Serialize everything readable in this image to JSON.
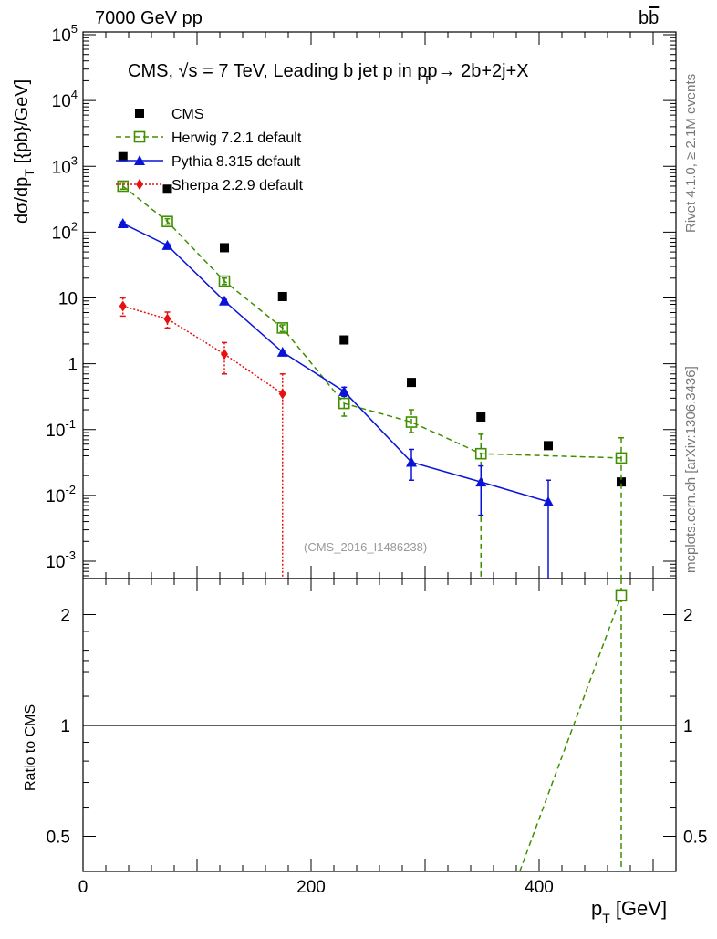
{
  "header": {
    "left": "7000 GeV pp",
    "right": "b",
    "right_bar": "b"
  },
  "side": {
    "rivet": "Rivet 4.1.0, ≥ 2.1M events",
    "mcplots": "mcplots.cern.ch [arXiv:1306.3436]"
  },
  "chart_data": {
    "type": "scatter",
    "title": "CMS, √s = 7 TeV, Leading b jet p in pp→  2b+2j+X",
    "title_sub": "T",
    "watermark": "(CMS_2016_I1486238)",
    "xlabel": "p",
    "xlabel_sub": "T",
    "xlabel_unit": "[GeV]",
    "ylabel_top": "dσ/dp",
    "ylabel_top_sub": "T",
    "ylabel_top_unit": "[{pb}/GeV]",
    "ylabel_bottom": "Ratio to CMS",
    "xlim": [
      0,
      520
    ],
    "ylim_top": [
      0.0005,
      100000
    ],
    "ylim_bottom": [
      0.35,
      2.3
    ],
    "x_ticks": [
      "0",
      "200",
      "400"
    ],
    "y_ticks_top": [
      "10^5",
      "10^4",
      "10^3",
      "10^2",
      "10",
      "1",
      "10^-1",
      "10^-2",
      "10^-3"
    ],
    "y_ticks_bottom": [
      "2",
      "1",
      "0.5"
    ],
    "series": [
      {
        "name": "CMS",
        "color": "#000000",
        "marker": "square",
        "x": [
          35,
          74,
          124,
          175,
          229,
          288,
          349,
          408,
          472
        ],
        "y": [
          1400,
          450,
          58,
          10.5,
          2.3,
          0.52,
          0.155,
          0.057,
          0.016
        ]
      },
      {
        "name": "Herwig 7.2.1 default",
        "color": "#3f8f00",
        "marker": "open-square",
        "line": "dashed",
        "x": [
          35,
          74,
          124,
          175,
          229,
          288,
          349,
          472
        ],
        "y": [
          500,
          145,
          18,
          3.5,
          0.25,
          0.13,
          0.043,
          0.037
        ],
        "err_lo": [
          450,
          132,
          16,
          3.1,
          0.16,
          0.09,
          0.0005,
          0.0005
        ],
        "err_hi": [
          560,
          160,
          20,
          3.9,
          0.35,
          0.2,
          0.085,
          0.075
        ]
      },
      {
        "name": "Pythia 8.315 default",
        "color": "#0a14d9",
        "marker": "triangle",
        "line": "solid",
        "x": [
          35,
          74,
          124,
          175,
          229,
          288,
          349,
          408
        ],
        "y": [
          135,
          63,
          9,
          1.5,
          0.38,
          0.032,
          0.016,
          0.008
        ],
        "err_lo": [
          128,
          60,
          8.5,
          1.4,
          0.32,
          0.017,
          0.005,
          0.0005
        ],
        "err_hi": [
          142,
          66,
          9.5,
          1.6,
          0.44,
          0.05,
          0.028,
          0.017
        ]
      },
      {
        "name": "Sherpa 2.2.9 default",
        "color": "#e81010",
        "marker": "diamond",
        "line": "dotted",
        "x": [
          35,
          74,
          124,
          175
        ],
        "y": [
          7.5,
          4.8,
          1.4,
          0.35
        ],
        "err_lo": [
          5.3,
          3.5,
          0.7,
          0.0005
        ],
        "err_hi": [
          10,
          6.1,
          2.1,
          0.7
        ]
      }
    ],
    "ratio_series": [
      {
        "name": "Herwig 7.2.1 default ratio",
        "color": "#3f8f00",
        "x": [
          368,
          472
        ],
        "y": [
          0.3,
          2.25
        ]
      }
    ]
  }
}
